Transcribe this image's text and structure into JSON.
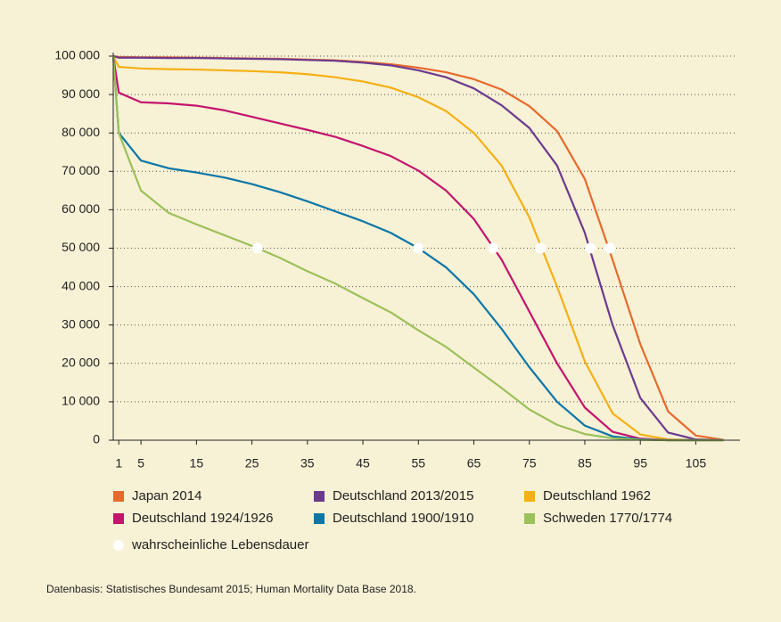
{
  "chart_data": {
    "type": "line",
    "x": [
      0,
      1,
      5,
      10,
      15,
      20,
      25,
      30,
      35,
      40,
      45,
      50,
      55,
      60,
      65,
      70,
      75,
      80,
      85,
      90,
      95,
      100,
      105,
      110
    ],
    "series": [
      {
        "name": "Japan 2014",
        "color": "#e8692c",
        "values": [
          100000,
          99800,
          99700,
          99700,
          99600,
          99500,
          99400,
          99300,
          99100,
          98900,
          98500,
          97900,
          97000,
          95800,
          94000,
          91300,
          87000,
          80500,
          68000,
          47000,
          25000,
          7500,
          1200,
          100
        ]
      },
      {
        "name": "Deutschland 2013/2015",
        "color": "#6b3a8e",
        "values": [
          100000,
          99600,
          99600,
          99500,
          99500,
          99400,
          99300,
          99200,
          99000,
          98800,
          98300,
          97600,
          96300,
          94500,
          91600,
          87200,
          81300,
          71500,
          54000,
          30000,
          11000,
          2000,
          200,
          0
        ]
      },
      {
        "name": "Deutschland 1962",
        "color": "#f5b014",
        "values": [
          100000,
          97200,
          96800,
          96600,
          96500,
          96300,
          96100,
          95800,
          95300,
          94500,
          93400,
          91800,
          89300,
          85700,
          80000,
          71500,
          58000,
          40000,
          20500,
          7000,
          1500,
          200,
          0,
          0
        ]
      },
      {
        "name": "Deutschland 1924/1926",
        "color": "#c4146e",
        "values": [
          100000,
          90500,
          88000,
          87700,
          87100,
          85900,
          84200,
          82500,
          80800,
          79000,
          76600,
          74000,
          70200,
          65000,
          57600,
          47000,
          33500,
          20000,
          8500,
          2200,
          400,
          0,
          0,
          0
        ]
      },
      {
        "name": "Deutschland 1900/1910",
        "color": "#0b76a8",
        "values": [
          100000,
          80000,
          72800,
          70800,
          69700,
          68400,
          66700,
          64600,
          62200,
          59600,
          57000,
          54000,
          50000,
          45000,
          38000,
          29000,
          19000,
          10000,
          3800,
          1000,
          200,
          0,
          0,
          0
        ]
      },
      {
        "name": "Schweden 1770/1774",
        "color": "#9bc15a",
        "values": [
          100000,
          80000,
          65000,
          59200,
          56200,
          53400,
          50600,
          47500,
          44000,
          40800,
          37000,
          33300,
          28600,
          24300,
          18900,
          13600,
          8000,
          4000,
          1600,
          500,
          100,
          0,
          0,
          0
        ]
      }
    ],
    "medians": {
      "name": "wahrscheinliche Lebensdauer",
      "color": "#ffffff",
      "x": [
        26,
        55,
        68.5,
        77,
        86,
        89.5
      ],
      "values": [
        50000,
        50000,
        50000,
        50000,
        50000,
        50000
      ]
    },
    "xlim": [
      0,
      112
    ],
    "ylim": [
      0,
      100000
    ],
    "xticks": [
      1,
      5,
      15,
      25,
      35,
      45,
      55,
      65,
      75,
      85,
      95,
      105
    ],
    "yticks": [
      0,
      {
        "value": 10000,
        "label": "10 000"
      },
      {
        "value": 20000,
        "label": "20 000"
      },
      {
        "value": 30000,
        "label": "30 000"
      },
      {
        "value": 40000,
        "label": "40 000"
      },
      {
        "value": 50000,
        "label": "50 000"
      },
      {
        "value": 60000,
        "label": "60 000"
      },
      {
        "value": 70000,
        "label": "70 000"
      },
      {
        "value": 80000,
        "label": "80 000"
      },
      {
        "value": 90000,
        "label": "90 000"
      },
      {
        "value": 100000,
        "label": "100 000"
      }
    ],
    "grid": true,
    "source": "Datenbasis: Statistisches Bundesamt 2015; Human Mortality Data Base 2018."
  }
}
